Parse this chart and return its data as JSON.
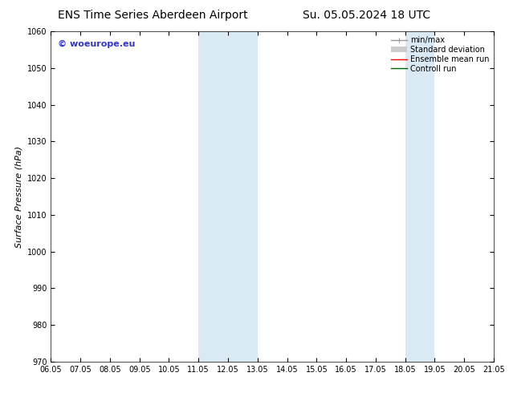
{
  "title_left": "ENS Time Series Aberdeen Airport",
  "title_right": "Su. 05.05.2024 18 UTC",
  "ylabel": "Surface Pressure (hPa)",
  "ylim": [
    970,
    1060
  ],
  "yticks": [
    970,
    980,
    990,
    1000,
    1010,
    1020,
    1030,
    1040,
    1050,
    1060
  ],
  "xtick_labels": [
    "06.05",
    "07.05",
    "08.05",
    "09.05",
    "10.05",
    "11.05",
    "12.05",
    "13.05",
    "14.05",
    "15.05",
    "16.05",
    "17.05",
    "18.05",
    "19.05",
    "20.05",
    "21.05"
  ],
  "xtick_positions": [
    0,
    1,
    2,
    3,
    4,
    5,
    6,
    7,
    8,
    9,
    10,
    11,
    12,
    13,
    14,
    15
  ],
  "xlim_start": 0,
  "xlim_end": 15,
  "shaded_bands": [
    {
      "xmin": 5.0,
      "xmax": 7.0
    },
    {
      "xmin": 12.0,
      "xmax": 13.0
    }
  ],
  "band_color": "#daeaf5",
  "watermark_text": "© woeurope.eu",
  "watermark_color": "#3333cc",
  "legend_entries": [
    {
      "label": "min/max",
      "color": "#999999",
      "lw": 1.0
    },
    {
      "label": "Standard deviation",
      "color": "#cccccc",
      "lw": 5
    },
    {
      "label": "Ensemble mean run",
      "color": "#ff0000",
      "lw": 1.0
    },
    {
      "label": "Controll run",
      "color": "#006600",
      "lw": 1.0
    }
  ],
  "bg_color": "#ffffff",
  "plot_bg_color": "#ffffff",
  "tick_color": "#000000",
  "title_fontsize": 10,
  "axis_label_fontsize": 8,
  "tick_fontsize": 7,
  "watermark_fontsize": 8,
  "legend_fontsize": 7
}
